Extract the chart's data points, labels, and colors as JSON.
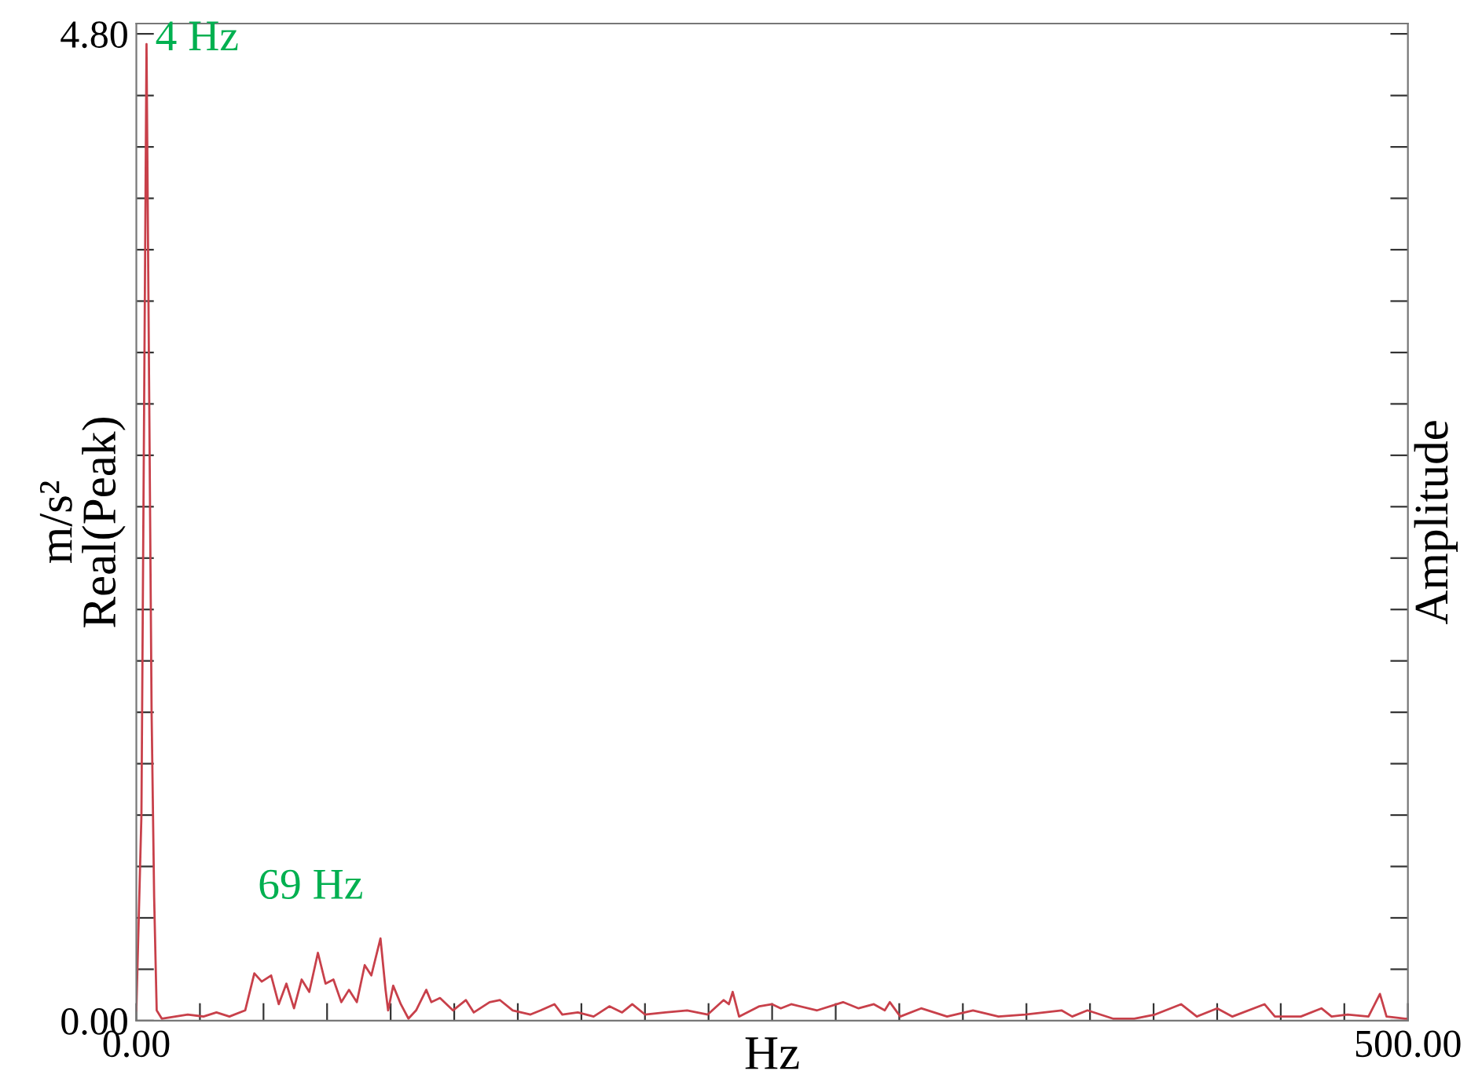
{
  "chart_data": {
    "type": "line",
    "xlabel": "Hz",
    "ylabel": "m/s²\nReal(Peak)",
    "y2label": "Amplitude",
    "x": [
      0,
      2,
      4,
      6,
      7,
      8,
      10,
      20.2,
      26.4,
      31.5,
      36.6,
      42.8,
      46.4,
      49.3,
      53,
      56,
      59,
      62,
      65,
      68,
      71.4,
      74.4,
      77.5,
      80.6,
      83.6,
      86.7,
      89.8,
      92.4,
      96,
      98,
      99,
      101,
      104,
      107,
      110,
      114,
      116,
      119.4,
      124.5,
      129.6,
      132.7,
      138.9,
      143,
      148,
      155,
      159,
      164.4,
      167.5,
      173.6,
      179.8,
      186,
      191,
      195,
      200,
      208,
      216.6,
      224.7,
      230.9,
      233,
      234.5,
      237,
      245,
      250,
      253.4,
      257.5,
      267.7,
      277.9,
      284,
      290,
      294.3,
      296.3,
      300.4,
      308.6,
      318.8,
      329,
      339,
      349.5,
      363.8,
      368,
      374,
      384,
      392.4,
      400.6,
      410.8,
      417,
      425,
      431,
      443.6,
      447.7,
      457.9,
      466,
      470,
      476.3,
      484.5,
      489,
      491.6,
      498.8,
      500
    ],
    "series": [
      {
        "color": "#c8404a",
        "values": [
          0.05,
          1.0,
          4.75,
          1.5,
          0.6,
          0.05,
          0.01,
          0.03,
          0.02,
          0.04,
          0.02,
          0.05,
          0.23,
          0.19,
          0.22,
          0.08,
          0.18,
          0.06,
          0.2,
          0.14,
          0.33,
          0.18,
          0.2,
          0.09,
          0.15,
          0.09,
          0.27,
          0.22,
          0.4,
          0.15,
          0.05,
          0.17,
          0.08,
          0.01,
          0.05,
          0.15,
          0.09,
          0.11,
          0.05,
          0.1,
          0.04,
          0.09,
          0.1,
          0.05,
          0.03,
          0.05,
          0.08,
          0.03,
          0.04,
          0.02,
          0.07,
          0.04,
          0.08,
          0.03,
          0.04,
          0.05,
          0.03,
          0.1,
          0.08,
          0.14,
          0.02,
          0.07,
          0.08,
          0.06,
          0.08,
          0.05,
          0.09,
          0.06,
          0.08,
          0.05,
          0.09,
          0.02,
          0.06,
          0.02,
          0.05,
          0.02,
          0.03,
          0.05,
          0.02,
          0.05,
          0.01,
          0.01,
          0.03,
          0.08,
          0.02,
          0.06,
          0.02,
          0.08,
          0.02,
          0.02,
          0.06,
          0.02,
          0.03,
          0.02,
          0.13,
          0.02,
          0.01,
          0.01
        ]
      }
    ],
    "xlim": [
      0,
      500
    ],
    "ylim": [
      0,
      4.85
    ],
    "xticks": [
      {
        "value": 0,
        "label": "0.00"
      },
      {
        "value": 25,
        "label": null
      },
      {
        "value": 50,
        "label": null
      },
      {
        "value": 75,
        "label": null
      },
      {
        "value": 100,
        "label": null
      },
      {
        "value": 125,
        "label": null
      },
      {
        "value": 150,
        "label": null
      },
      {
        "value": 175,
        "label": null
      },
      {
        "value": 200,
        "label": null
      },
      {
        "value": 225,
        "label": null
      },
      {
        "value": 250,
        "label": null
      },
      {
        "value": 275,
        "label": null
      },
      {
        "value": 300,
        "label": null
      },
      {
        "value": 325,
        "label": null
      },
      {
        "value": 350,
        "label": null
      },
      {
        "value": 375,
        "label": null
      },
      {
        "value": 400,
        "label": null
      },
      {
        "value": 425,
        "label": null
      },
      {
        "value": 450,
        "label": null
      },
      {
        "value": 475,
        "label": null
      },
      {
        "value": 500,
        "label": "500.00"
      }
    ],
    "yticks": [
      {
        "value": 0,
        "label": "0.00"
      },
      {
        "value": 0.25,
        "label": null
      },
      {
        "value": 0.5,
        "label": null
      },
      {
        "value": 0.75,
        "label": null
      },
      {
        "value": 1,
        "label": null
      },
      {
        "value": 1.25,
        "label": null
      },
      {
        "value": 1.5,
        "label": null
      },
      {
        "value": 1.75,
        "label": null
      },
      {
        "value": 2,
        "label": null
      },
      {
        "value": 2.25,
        "label": null
      },
      {
        "value": 2.5,
        "label": null
      },
      {
        "value": 2.75,
        "label": null
      },
      {
        "value": 3,
        "label": null
      },
      {
        "value": 3.25,
        "label": null
      },
      {
        "value": 3.5,
        "label": null
      },
      {
        "value": 3.75,
        "label": null
      },
      {
        "value": 4,
        "label": null
      },
      {
        "value": 4.25,
        "label": null
      },
      {
        "value": 4.5,
        "label": null
      },
      {
        "value": 4.8,
        "label": "4.80"
      }
    ],
    "annotations": [
      {
        "text": "4 Hz",
        "x": 4,
        "y": 4.75
      },
      {
        "text": "69 Hz",
        "x": 96,
        "y": 0.4
      }
    ],
    "grid": false,
    "legend": false,
    "marker": "none",
    "line_style": "solid"
  }
}
